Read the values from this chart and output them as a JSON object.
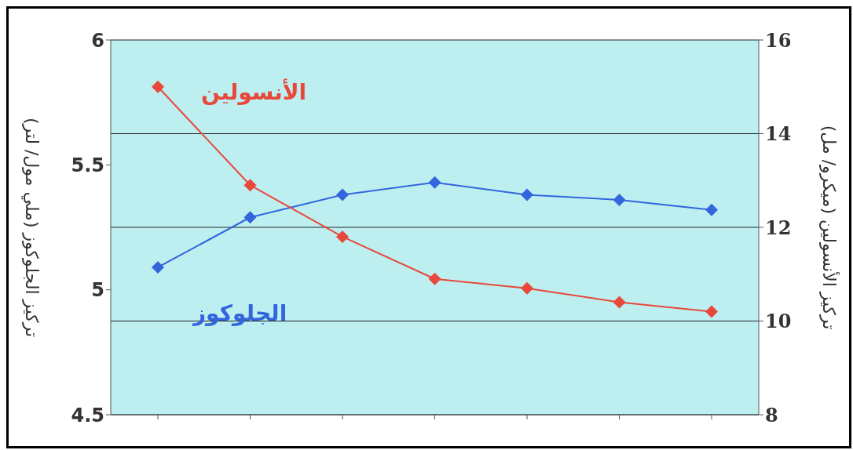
{
  "chart_data": {
    "type": "line",
    "ylabel": "تركيز الجلوكوز (ملي مول/ لتر)",
    "y2label": "تركيز الأنسولين (ميكرو/ مل)",
    "categories": [
      null,
      null,
      null,
      null,
      null,
      null,
      null
    ],
    "series": [
      {
        "name": "الجلوكوز",
        "color": "#3366dd",
        "values": [
          5.09,
          5.29,
          5.38,
          5.43,
          5.38,
          5.36,
          5.32
        ]
      },
      {
        "name": "الأنسولين",
        "color": "#e8483a",
        "axis": "y2",
        "values": [
          15.0,
          12.9,
          11.8,
          10.9,
          10.7,
          10.4,
          10.2
        ]
      }
    ],
    "ylim": [
      4.5,
      6
    ],
    "yticks": [
      4.5,
      5,
      5.5,
      6
    ],
    "y2lim": [
      8,
      16
    ],
    "y2ticks": [
      8,
      10,
      12,
      14,
      16
    ],
    "grid": "y",
    "marker": "diamond",
    "line_style": "solid"
  }
}
